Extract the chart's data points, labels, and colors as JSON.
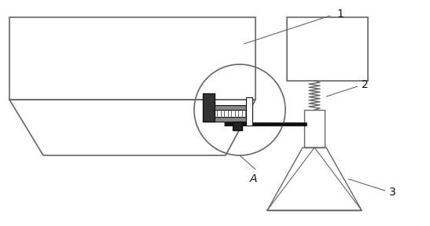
{
  "bg_color": "#ffffff",
  "lc": "#666666",
  "dc": "#111111",
  "gray": "#999999",
  "label1": "1",
  "label2": "2",
  "label3": "3",
  "labelA": "A",
  "figsize": [
    5.47,
    2.88
  ],
  "dpi": 100
}
